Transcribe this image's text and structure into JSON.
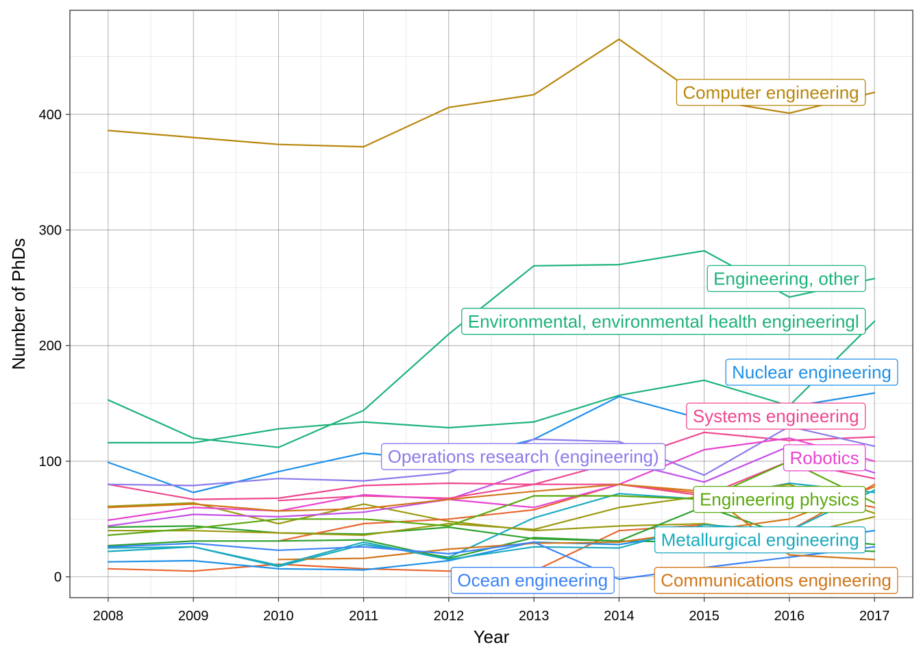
{
  "chart_data": {
    "type": "line",
    "xlabel": "Year",
    "ylabel": "Number of PhDs",
    "xlim": [
      2007.55,
      2017.45
    ],
    "ylim": [
      -18,
      490
    ],
    "x_ticks": [
      2008,
      2009,
      2010,
      2011,
      2012,
      2013,
      2014,
      2015,
      2016,
      2017
    ],
    "y_ticks": [
      0,
      100,
      200,
      300,
      400
    ],
    "grid": true,
    "legend": "none",
    "x": [
      2008,
      2009,
      2010,
      2011,
      2012,
      2013,
      2014,
      2015,
      2016,
      2017
    ],
    "series": [
      {
        "name": "Computer engineering",
        "color": "#B8860B",
        "values": [
          386,
          380,
          374,
          372,
          406,
          417,
          465,
          413,
          401,
          419
        ]
      },
      {
        "name": "Engineering, other",
        "color": "#1DB27A",
        "values": [
          153,
          120,
          112,
          144,
          210,
          269,
          270,
          282,
          242,
          258
        ]
      },
      {
        "name": "Environmental, environmental health engineeringl",
        "color": "#1DB27A",
        "values": [
          116,
          116,
          128,
          134,
          129,
          134,
          157,
          170,
          148,
          221
        ]
      },
      {
        "name": "Nuclear engineering",
        "color": "#1E90E8",
        "values": [
          99,
          73,
          91,
          107,
          100,
          119,
          156,
          136,
          147,
          159
        ]
      },
      {
        "name": "Systems engineering",
        "color": "#F0468F",
        "values": [
          80,
          67,
          68,
          79,
          81,
          80,
          100,
          125,
          118,
          121
        ]
      },
      {
        "name": "Operations research (engineering)",
        "color": "#8B7BEB",
        "values": [
          80,
          79,
          85,
          83,
          90,
          119,
          117,
          88,
          130,
          113
        ]
      },
      {
        "name": "Robotics",
        "color": "#E845D0",
        "values": [
          49,
          60,
          57,
          71,
          67,
          60,
          80,
          110,
          120,
          100
        ]
      },
      {
        "name": "Engineering physics",
        "color": "#5BA80F",
        "values": [
          36,
          42,
          50,
          50,
          44,
          70,
          70,
          67,
          100,
          64
        ]
      },
      {
        "name": "Metallurgical engineering",
        "color": "#1AAABE",
        "values": [
          25,
          26,
          10,
          30,
          15,
          26,
          25,
          45,
          40,
          75
        ]
      },
      {
        "name": "Ocean engineering",
        "color": "#3B82F6",
        "values": [
          26,
          29,
          23,
          26,
          20,
          30,
          -2,
          8,
          17,
          26
        ]
      },
      {
        "name": "Communications engineering",
        "color": "#D2761A",
        "values": [
          60,
          63,
          57,
          59,
          67,
          74,
          80,
          74,
          19,
          15
        ]
      },
      {
        "name": "",
        "color": "#E8652E",
        "values": [
          7,
          5,
          11,
          7,
          5,
          5,
          40,
          45,
          40,
          80
        ]
      },
      {
        "name": "",
        "color": "#9A9A10",
        "values": [
          61,
          64,
          46,
          63,
          48,
          40,
          44,
          46,
          35,
          52
        ]
      },
      {
        "name": "",
        "color": "#2EA02E",
        "values": [
          43,
          44,
          38,
          37,
          43,
          33,
          31,
          61,
          35,
          28
        ]
      },
      {
        "name": "",
        "color": "#C24FE8",
        "values": [
          44,
          54,
          52,
          56,
          67,
          92,
          100,
          82,
          113,
          90
        ]
      },
      {
        "name": "",
        "color": "#1AAABE",
        "values": [
          22,
          26,
          9,
          28,
          17,
          51,
          72,
          67,
          81,
          73
        ]
      },
      {
        "name": "",
        "color": "#E8652E",
        "values": [
          null,
          null,
          31,
          46,
          50,
          58,
          80,
          72,
          75,
          60
        ]
      },
      {
        "name": "",
        "color": "#9A9A10",
        "values": [
          40,
          40,
          38,
          36,
          46,
          41,
          60,
          70,
          80,
          55
        ]
      },
      {
        "name": "",
        "color": "#2EA02E",
        "values": [
          27,
          31,
          31,
          32,
          16,
          34,
          31,
          30,
          25,
          22
        ]
      },
      {
        "name": "",
        "color": "#1E90E8",
        "values": [
          13,
          14,
          7,
          6,
          14,
          30,
          28,
          40,
          30,
          40
        ]
      },
      {
        "name": "",
        "color": "#F0468F",
        "values": [
          null,
          null,
          66,
          70,
          68,
          80,
          80,
          70,
          100,
          85
        ]
      },
      {
        "name": "",
        "color": "#D2761A",
        "values": [
          null,
          null,
          15,
          16,
          24,
          29,
          30,
          40,
          50,
          78
        ]
      }
    ],
    "annotations": [
      {
        "text": "Computer engineering",
        "color": "#B8860B",
        "anchor": "right",
        "at_x": 2016.9,
        "at_y": 419
      },
      {
        "text": "Engineering, other",
        "color": "#1DB27A",
        "anchor": "right",
        "at_x": 2016.9,
        "at_y": 258
      },
      {
        "text": "Environmental, environmental health engineeringl",
        "color": "#1DB27A",
        "anchor": "right",
        "at_x": 2016.9,
        "at_y": 221
      },
      {
        "text": "Nuclear engineering",
        "color": "#1E90E8",
        "anchor": "right",
        "at_x": 2017.28,
        "at_y": 177
      },
      {
        "text": "Systems engineering",
        "color": "#F0468F",
        "anchor": "right",
        "at_x": 2016.9,
        "at_y": 139
      },
      {
        "text": "Operations research (engineering)",
        "color": "#8B7BEB",
        "anchor": "right",
        "at_x": 2014.55,
        "at_y": 104
      },
      {
        "text": "Robotics",
        "color": "#E845D0",
        "anchor": "right",
        "at_x": 2016.9,
        "at_y": 103
      },
      {
        "text": "Engineering physics",
        "color": "#5BA80F",
        "anchor": "right",
        "at_x": 2016.9,
        "at_y": 67
      },
      {
        "text": "Metallurgical engineering",
        "color": "#1AAABE",
        "anchor": "right",
        "at_x": 2016.9,
        "at_y": 32
      },
      {
        "text": "Ocean engineering",
        "color": "#3B82F6",
        "anchor": "right",
        "at_x": 2013.95,
        "at_y": -3
      },
      {
        "text": "Communications engineering",
        "color": "#D2761A",
        "anchor": "right",
        "at_x": 2017.28,
        "at_y": -3
      }
    ]
  }
}
